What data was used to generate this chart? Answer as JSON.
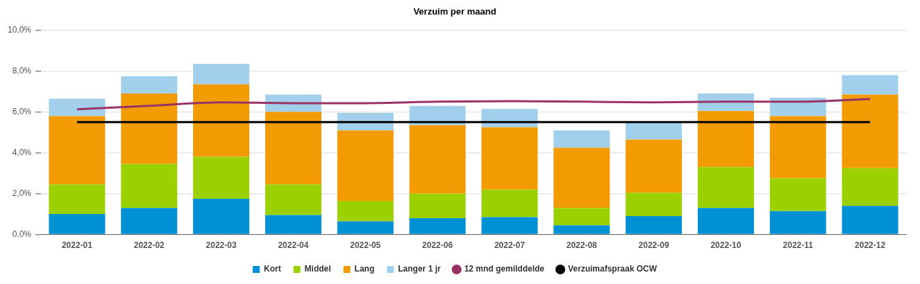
{
  "chart_data": {
    "type": "bar",
    "title": "Verzuim per maand",
    "stacked": true,
    "categories": [
      "2022-01",
      "2022-02",
      "2022-03",
      "2022-04",
      "2022-05",
      "2022-06",
      "2022-07",
      "2022-08",
      "2022-09",
      "2022-10",
      "2022-11",
      "2022-12"
    ],
    "series": [
      {
        "name": "Kort",
        "color": "#0090d4",
        "values": [
          1.0,
          1.3,
          1.75,
          0.95,
          0.65,
          0.8,
          0.85,
          0.45,
          0.9,
          1.3,
          1.15,
          1.4
        ]
      },
      {
        "name": "Middel",
        "color": "#9bd100",
        "values": [
          1.45,
          2.15,
          2.05,
          1.5,
          1.0,
          1.2,
          1.35,
          0.85,
          1.15,
          2.0,
          1.6,
          1.85
        ]
      },
      {
        "name": "Lang",
        "color": "#f29b03",
        "values": [
          3.35,
          3.45,
          3.55,
          3.55,
          3.45,
          3.35,
          3.05,
          2.95,
          2.6,
          2.75,
          3.05,
          3.6
        ]
      },
      {
        "name": "Langer 1 jr",
        "color": "#a2cfec",
        "values": [
          0.85,
          0.85,
          1.0,
          0.85,
          0.85,
          0.95,
          0.9,
          0.85,
          0.9,
          0.85,
          0.9,
          0.95
        ]
      },
      {
        "name": "12 mnd gemilddelde",
        "type": "line",
        "color": "#993366",
        "values": [
          6.13,
          6.3,
          6.47,
          6.43,
          6.43,
          6.5,
          6.53,
          6.5,
          6.47,
          6.5,
          6.5,
          6.63
        ]
      },
      {
        "name": "Verzuimafspraak OCW",
        "type": "line",
        "color": "#000000",
        "values": [
          5.5,
          5.5,
          5.5,
          5.5,
          5.5,
          5.5,
          5.5,
          5.5,
          5.5,
          5.5,
          5.5,
          5.5
        ]
      }
    ],
    "ylim": [
      0,
      10
    ],
    "yticks": [
      {
        "value": 0,
        "label": "0,0%"
      },
      {
        "value": 2,
        "label": "2,0%"
      },
      {
        "value": 4,
        "label": "4,0%"
      },
      {
        "value": 6,
        "label": "6,0%"
      },
      {
        "value": 8,
        "label": "8,0%"
      },
      {
        "value": 10,
        "label": "10,0%"
      }
    ],
    "grid": "y",
    "legend": "bottom",
    "marker": "none",
    "line_style": "solid"
  }
}
